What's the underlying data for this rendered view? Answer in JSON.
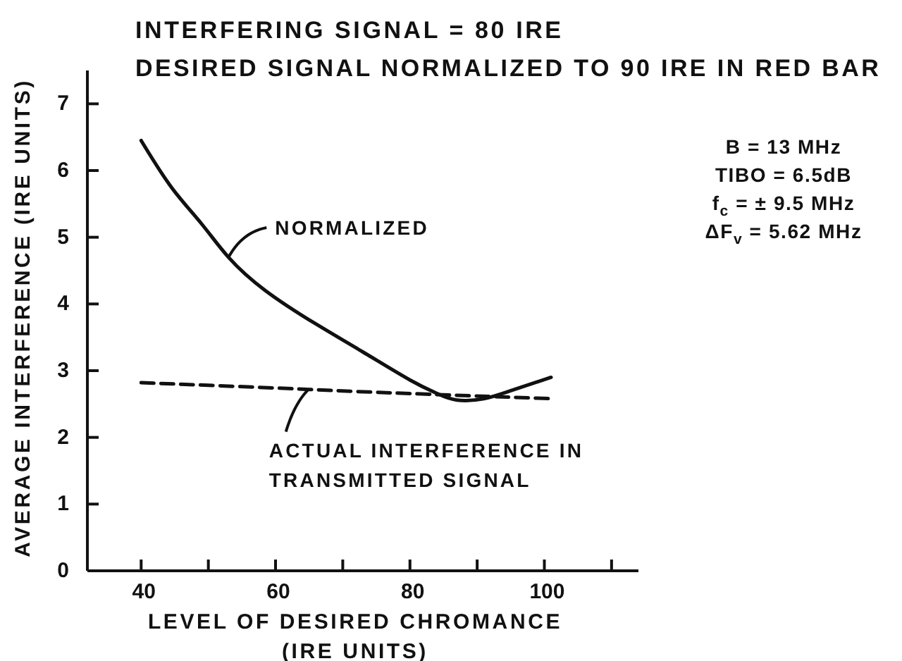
{
  "chart_data": {
    "type": "line",
    "title": "INTERFERING SIGNAL = 80 IRE",
    "subtitle": "DESIRED SIGNAL NORMALIZED TO 90 IRE IN RED BAR",
    "xlabel": "LEVEL OF DESIRED CHROMANCE (IRE UNITS)",
    "ylabel": "AVERAGE INTERFERENCE (IRE UNITS)",
    "annotations": [
      "B = 13 MHz",
      "TIBO = 6.5dB",
      "f$_{c}$ = ± 9.5 MHz",
      "ΔF$_{v}$ = 5.62 MHz"
    ],
    "xlim": [
      32,
      114
    ],
    "xticks": [
      40,
      {
        "value": 50,
        "label": null
      },
      60,
      {
        "value": 70,
        "label": null
      },
      80,
      {
        "value": 90,
        "label": null
      },
      100,
      {
        "value": 110,
        "label": null
      }
    ],
    "ylim": [
      0,
      7.5
    ],
    "yticks": [
      0,
      1,
      2,
      3,
      4,
      5,
      6,
      7
    ],
    "marker": "none",
    "series": [
      {
        "name": "NORMALIZED",
        "color": "#111111",
        "line_style": "solid",
        "x": [
          40,
          44.5,
          49,
          53,
          58.5,
          66,
          73,
          80,
          84,
          87,
          91,
          95,
          101
        ],
        "values": [
          6.45,
          5.75,
          5.2,
          4.7,
          4.2,
          3.7,
          3.28,
          2.86,
          2.66,
          2.56,
          2.58,
          2.7,
          2.9
        ]
      },
      {
        "name": "ACTUAL INTERFERENCE IN TRANSMITTED SIGNAL",
        "color": "#111111",
        "line_style": "dashed",
        "x": [
          40,
          60,
          74,
          101
        ],
        "values": [
          2.82,
          2.74,
          2.68,
          2.58
        ]
      }
    ]
  }
}
